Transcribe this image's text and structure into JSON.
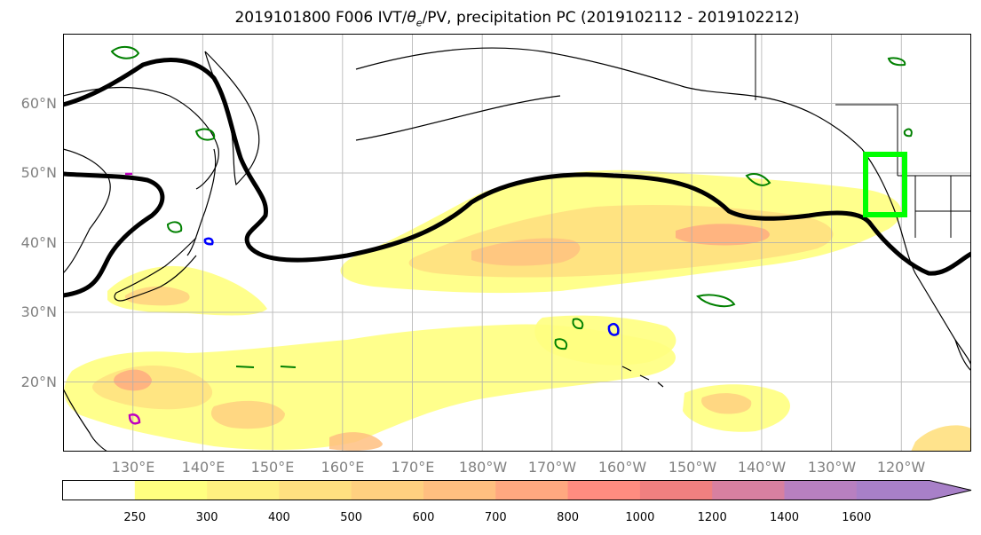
{
  "title": {
    "prefix": "2019101800 F006 IVT/",
    "theta": "θ",
    "theta_sub": "e",
    "suffix": "/PV, precipitation PC (2019102112 - 2019102212)"
  },
  "axes": {
    "lat_labels": [
      "60°N",
      "50°N",
      "40°N",
      "30°N",
      "20°N"
    ],
    "lat_values": [
      60,
      50,
      40,
      30,
      20
    ],
    "lon_labels": [
      "130°E",
      "140°E",
      "150°E",
      "160°E",
      "170°E",
      "180°W",
      "170°W",
      "160°W",
      "150°W",
      "140°W",
      "130°W",
      "120°W"
    ],
    "lon_values": [
      130,
      140,
      150,
      160,
      170,
      180,
      190,
      200,
      210,
      220,
      230,
      240
    ],
    "lat_range": [
      10,
      70
    ],
    "lon_range": [
      120,
      250
    ],
    "grid": true
  },
  "colorbar": {
    "levels": [
      "250",
      "300",
      "400",
      "500",
      "600",
      "700",
      "800",
      "1000",
      "1200",
      "1400",
      "1600"
    ],
    "colors": [
      "#ffffff",
      "#ffff80",
      "#fff080",
      "#ffe080",
      "#ffd080",
      "#ffbf80",
      "#ffa880",
      "#ff8c80",
      "#f08080",
      "#d880a0",
      "#b880c0",
      "#a880c8"
    ],
    "extend": "max"
  },
  "colors": {
    "front_line": "#000000",
    "pv_contour": "#008000",
    "theta_contour_blue": "#0000ff",
    "theta_contour_magenta": "#c000c0",
    "target_box": "#00ff00",
    "grid": "#b0b0b0",
    "coast": "#000000"
  }
}
